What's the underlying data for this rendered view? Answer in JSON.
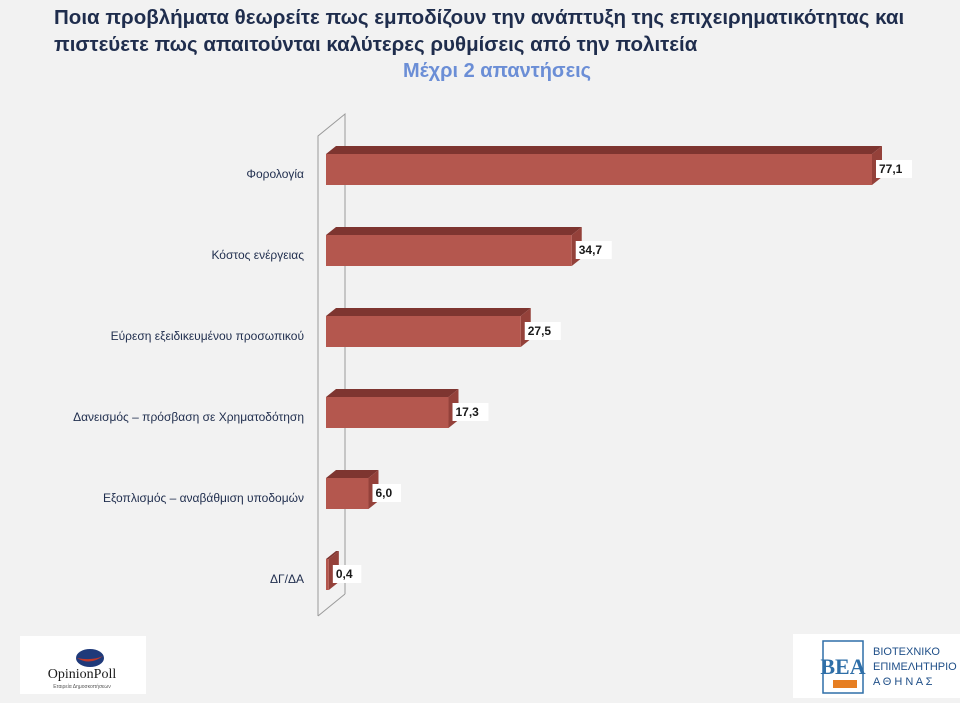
{
  "header": {
    "title": "Ποια προβλήματα θεωρείτε πως εμποδίζουν την ανάπτυξη της επιχειρηματικότητας και πιστεύετε πως απαιτούνται καλύτερες ρυθμίσεις από την πολιτεία",
    "subtitle": "Μέχρι 2 απαντήσεις"
  },
  "chart_data": {
    "type": "bar",
    "orientation": "horizontal",
    "style": "3d",
    "categories": [
      "Φορολογία",
      "Κόστος ενέργειας",
      "Εύρεση εξειδικευμένου προσωπικού",
      "Δανεισμός – πρόσβαση σε Χρηματοδότηση",
      "Εξοπλισμός – αναβάθμιση υποδομών",
      "ΔΓ/ΔΑ"
    ],
    "values": [
      77.1,
      34.7,
      27.5,
      17.3,
      6.0,
      0.4
    ],
    "data_labels": [
      "77,1",
      "34,7",
      "27,5",
      "17,3",
      "6,0",
      "0,4"
    ],
    "xlim": [
      0,
      77.1
    ],
    "grid": false,
    "colors": {
      "bar_front": "#b4574e",
      "bar_top": "#7e3530",
      "bar_right": "#94413a",
      "axis_line": "#9a9a9a"
    }
  },
  "logos": {
    "left": {
      "name": "OpinionPoll",
      "tagline": "Εταιρεία Δημοσκοπήσεων"
    },
    "right": {
      "mark": "ΒΕΑ",
      "line1": "ΒΙΟΤΕΧΝΙΚΟ",
      "line2": "ΕΠΙΜΕΛΗΤΗΡΙΟ",
      "line3": "Α Θ Η Ν Α Σ"
    }
  }
}
